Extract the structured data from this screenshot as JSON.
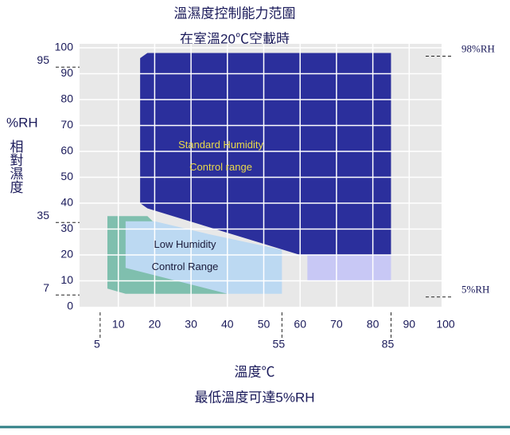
{
  "chart_data": {
    "type": "range",
    "title": "溫濕度控制能力范圍",
    "subtitle": "在室溫20℃空載時",
    "x_label": "溫度℃",
    "note": "最低溫度可達5%RH",
    "y_label": "%RH",
    "y_label_vertical": "相對濕度",
    "xlim": [
      0,
      100
    ],
    "ylim": [
      0,
      100
    ],
    "xticks": [
      10,
      20,
      30,
      40,
      50,
      60,
      70,
      80,
      90,
      100
    ],
    "yticks": [
      0,
      10,
      20,
      30,
      40,
      50,
      60,
      70,
      80,
      90,
      100
    ],
    "left_markers": [
      95,
      35,
      7
    ],
    "right_markers": [
      {
        "value": 98,
        "label": "98%RH"
      },
      {
        "value": 5,
        "label": "5%RH"
      }
    ],
    "bottom_markers": [
      5,
      55,
      85
    ],
    "regions": [
      {
        "color": "#7fbfae",
        "points": [
          [
            7,
            35
          ],
          [
            18,
            35
          ],
          [
            40,
            5
          ],
          [
            12,
            5
          ],
          [
            7,
            7
          ]
        ]
      },
      {
        "color": "#bcd9f2",
        "points": [
          [
            12,
            33
          ],
          [
            20,
            33
          ],
          [
            35,
            28
          ],
          [
            55,
            22
          ],
          [
            55,
            5
          ],
          [
            40,
            5
          ],
          [
            12,
            15
          ]
        ],
        "label": [
          "Low Humidity",
          "Control Range"
        ],
        "text_color": "#1a1a3a"
      },
      {
        "color": "#c8c8f5",
        "points": [
          [
            62,
            20
          ],
          [
            85,
            20
          ],
          [
            85,
            10
          ],
          [
            62,
            10
          ]
        ]
      },
      {
        "color": "#2b2f9c",
        "points": [
          [
            16,
            40
          ],
          [
            16,
            96
          ],
          [
            18,
            98
          ],
          [
            85,
            98
          ],
          [
            85,
            20
          ],
          [
            60,
            20
          ],
          [
            18,
            38
          ]
        ],
        "label": [
          "Standard Humidity",
          "Control range"
        ],
        "text_color": "#e8d84a"
      }
    ]
  }
}
